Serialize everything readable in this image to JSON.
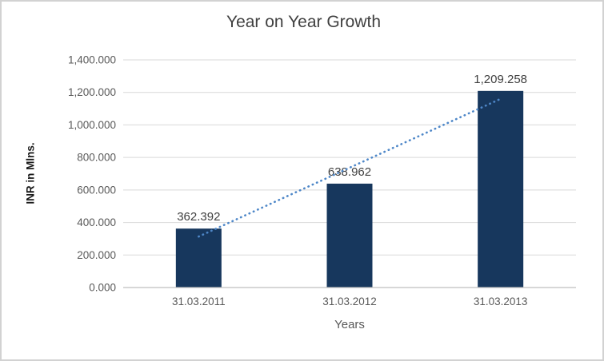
{
  "chart_data": {
    "type": "bar",
    "title": "Year on Year Growth",
    "xlabel": "Years",
    "ylabel": "INR in Mlns.",
    "categories": [
      "31.03.2011",
      "31.03.2012",
      "31.03.2013"
    ],
    "values": [
      362.392,
      638.962,
      1209.258
    ],
    "data_labels": [
      "362.392",
      "638.962",
      "1,209.258"
    ],
    "y_ticks": [
      0,
      200,
      400,
      600,
      800,
      1000,
      1200,
      1400
    ],
    "y_tick_labels": [
      "0.000",
      "200.000",
      "400.000",
      "600.000",
      "800.000",
      "1,000.000",
      "1,200.000",
      "1,400.000"
    ],
    "ylim": [
      0,
      1400
    ],
    "grid": true,
    "legend": "none",
    "trendline": {
      "type": "linear",
      "style": "dotted"
    },
    "colors": {
      "bar": "#17375D",
      "trend": "#4E87C8",
      "grid": "#D9D9D9",
      "axis": "#BFBFBF",
      "title": "#404040",
      "tick": "#595959",
      "border": "#D2D2D2"
    }
  }
}
